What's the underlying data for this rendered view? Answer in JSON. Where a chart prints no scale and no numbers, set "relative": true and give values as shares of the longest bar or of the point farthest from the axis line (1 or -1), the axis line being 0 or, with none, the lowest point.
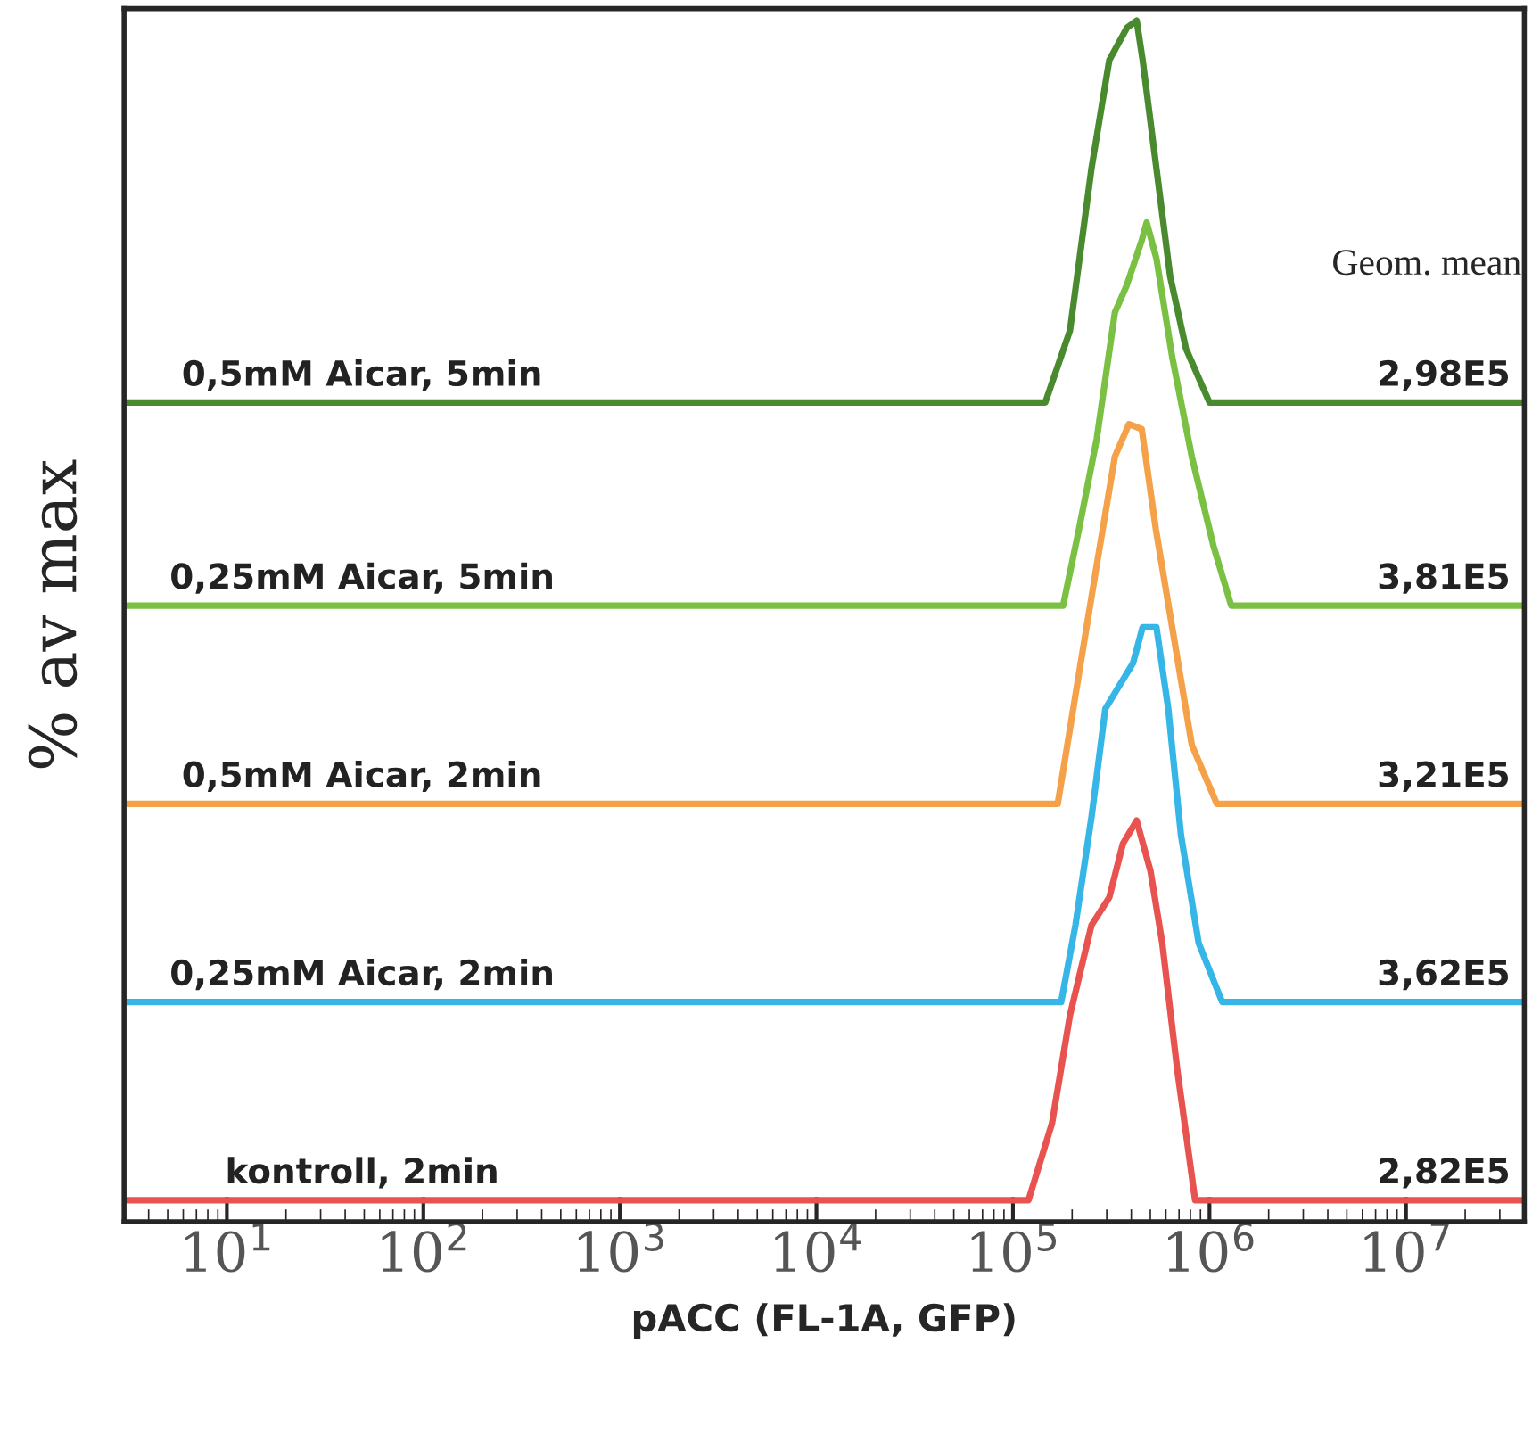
{
  "chart_data": {
    "type": "line",
    "relative": true,
    "log": "x",
    "grid": false,
    "legend": false,
    "xlabel": "pACC (FL-1A, GFP)",
    "ylabel": "% av max",
    "xlim": [
      3,
      40000000
    ],
    "xticks": [
      {
        "value": 10,
        "label": "10$^{1}$"
      },
      {
        "value": 100,
        "label": "10$^{2}$"
      },
      {
        "value": 1000,
        "label": "10$^{3}$"
      },
      {
        "value": 10000,
        "label": "10$^{4}$"
      },
      {
        "value": 100000,
        "label": "10$^{5}$"
      },
      {
        "value": 1000000,
        "label": "10$^{6}$"
      },
      {
        "value": 10000000,
        "label": "10$^{7}$"
      }
    ],
    "tick_labels": "x",
    "series": [
      {
        "name": "0,5mM Aicar, 5min",
        "color": "#4a8a2e",
        "x": [
          3,
          146000,
          195000,
          251000,
          309000,
          380000,
          426000,
          457000,
          537000,
          631000,
          759000,
          1000000,
          40000000
        ],
        "values": [
          0.682,
          0.682,
          0.742,
          0.877,
          0.967,
          0.994,
          1.0,
          0.967,
          0.877,
          0.787,
          0.727,
          0.682,
          0.682
        ]
      },
      {
        "name": "0,25mM Aicar, 5min",
        "color": "#7ac143",
        "x": [
          3,
          180000,
          217000,
          267000,
          330000,
          380000,
          452000,
          479000,
          537000,
          646000,
          813000,
          1050000,
          1290000,
          40000000
        ],
        "values": [
          0.513,
          0.513,
          0.577,
          0.652,
          0.757,
          0.78,
          0.817,
          0.832,
          0.802,
          0.72,
          0.637,
          0.562,
          0.513,
          0.513
        ]
      },
      {
        "name": "0,5mM Aicar, 2min",
        "color": "#f5a14a",
        "x": [
          3,
          169000,
          217000,
          267000,
          330000,
          389000,
          452000,
          533000,
          658000,
          813000,
          1090000,
          40000000
        ],
        "values": [
          0.348,
          0.348,
          0.457,
          0.547,
          0.637,
          0.664,
          0.66,
          0.577,
          0.487,
          0.397,
          0.348,
          0.348
        ]
      },
      {
        "name": "0,25mM Aicar, 2min",
        "color": "#35b6e6",
        "x": [
          3,
          176000,
          208000,
          251000,
          295000,
          408000,
          457000,
          537000,
          617000,
          716000,
          881000,
          1160000,
          40000000
        ],
        "values": [
          0.183,
          0.183,
          0.247,
          0.337,
          0.427,
          0.465,
          0.495,
          0.495,
          0.427,
          0.322,
          0.232,
          0.183,
          0.183
        ]
      },
      {
        "name": "kontroll, 2min",
        "color": "#e8524f",
        "x": [
          3,
          120000,
          158000,
          195000,
          251000,
          309000,
          363000,
          426000,
          501000,
          575000,
          685000,
          845000,
          40000000
        ],
        "values": [
          0.018,
          0.018,
          0.082,
          0.172,
          0.247,
          0.27,
          0.315,
          0.334,
          0.292,
          0.232,
          0.127,
          0.018,
          0.018
        ]
      }
    ],
    "annotations": [
      "Geom. mean",
      "2,98E5",
      "3,81E5",
      "3,21E5",
      "3,62E5",
      "2,82E5"
    ]
  }
}
